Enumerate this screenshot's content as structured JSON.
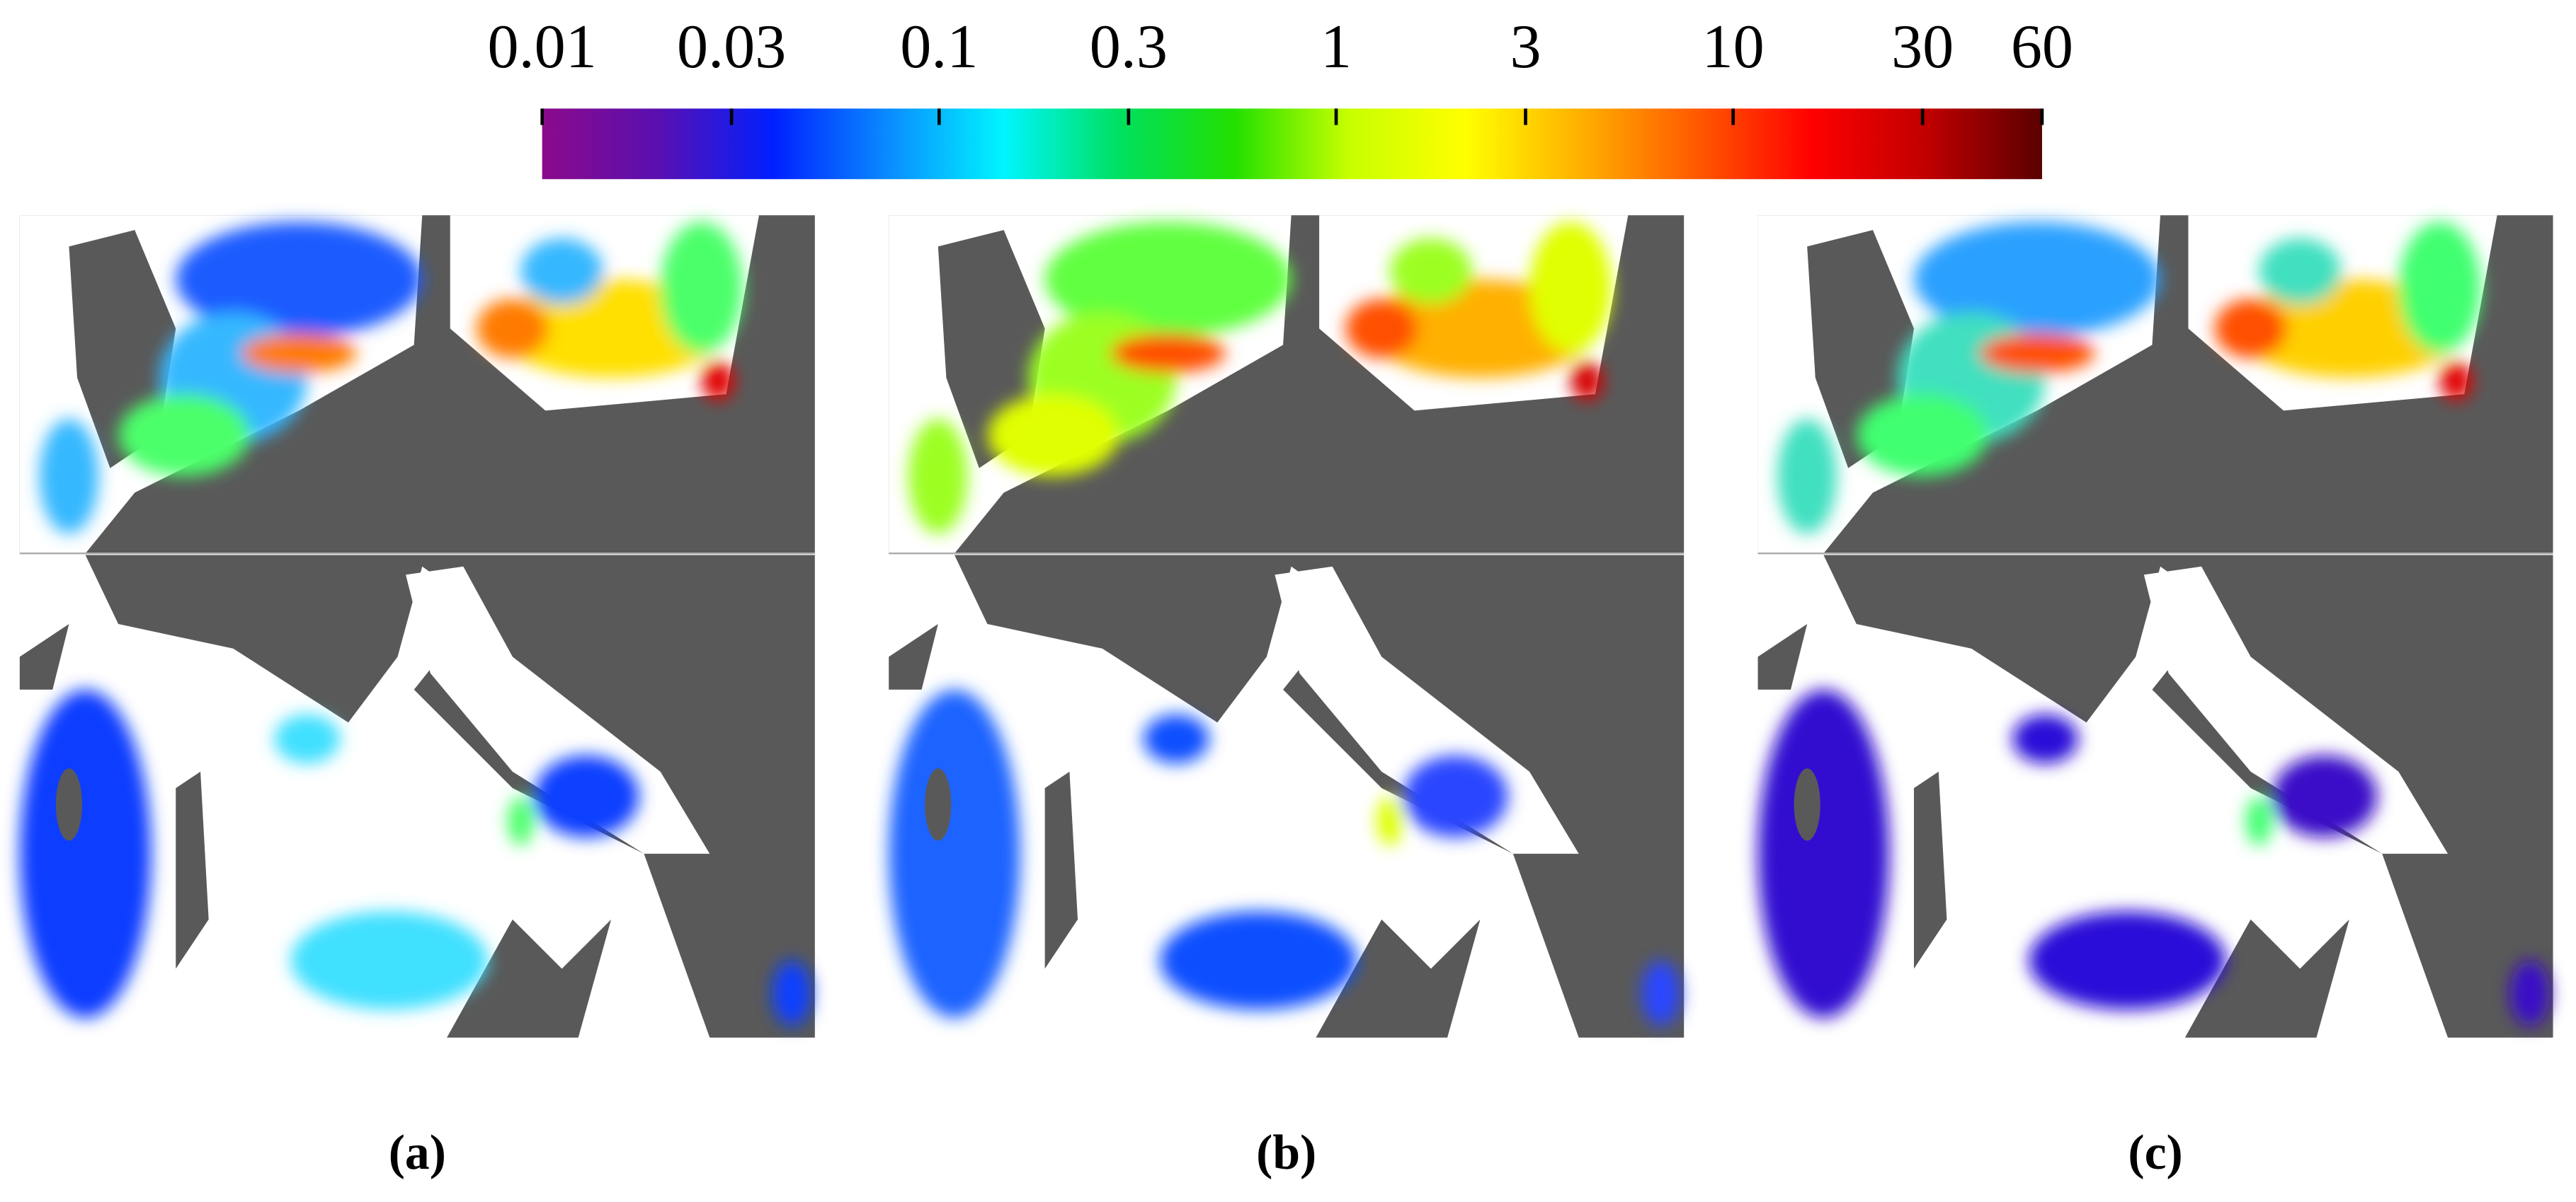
{
  "chart_data": {
    "type": "colorbar",
    "scale": "log",
    "clim": [
      0.01,
      60
    ],
    "ticks": [
      0.01,
      0.03,
      0.1,
      0.3,
      1,
      3,
      10,
      30,
      60
    ],
    "colormap": [
      "#8b0a8a",
      "#5a0fb0",
      "#0020ff",
      "#0a8cff",
      "#00f5ff",
      "#00e060",
      "#22e000",
      "#c8ff00",
      "#ffff00",
      "#ffb000",
      "#ff5a00",
      "#ff0000",
      "#c00000",
      "#5a0000"
    ],
    "panels": [
      "(a)",
      "(b)",
      "(c)"
    ]
  }
}
